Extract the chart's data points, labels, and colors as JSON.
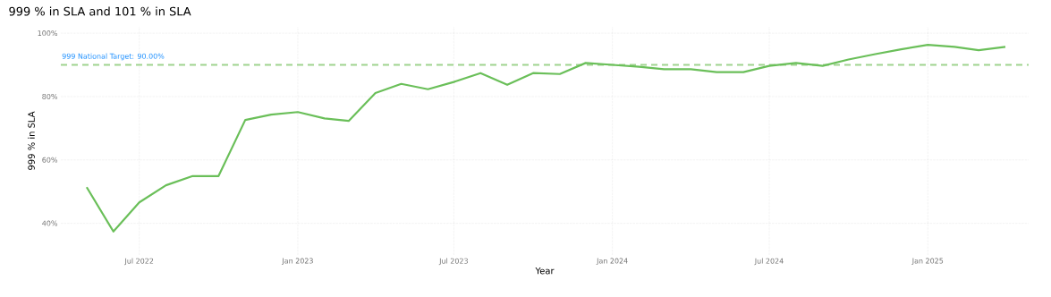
{
  "chart_data": {
    "type": "line",
    "title": "999 % in SLA and 101 % in SLA",
    "xlabel": "Year",
    "ylabel": "999 % in SLA",
    "x": [
      "2022-05",
      "2022-06",
      "2022-07",
      "2022-08",
      "2022-09",
      "2022-10",
      "2022-11",
      "2022-12",
      "2023-01",
      "2023-02",
      "2023-03",
      "2023-04",
      "2023-05",
      "2023-06",
      "2023-07",
      "2023-08",
      "2023-09",
      "2023-10",
      "2023-11",
      "2023-12",
      "2024-01",
      "2024-02",
      "2024-03",
      "2024-04",
      "2024-05",
      "2024-06",
      "2024-07",
      "2024-08",
      "2024-09",
      "2024-10",
      "2024-11",
      "2024-12",
      "2025-01",
      "2025-02",
      "2025-03",
      "2025-04"
    ],
    "series": [
      {
        "color": "#6abf59",
        "values": [
          51.4,
          37.4,
          46.6,
          52,
          54.9,
          54.9,
          72.6,
          74.3,
          75.1,
          73.1,
          72.3,
          81.1,
          84,
          82.3,
          84.6,
          87.4,
          83.7,
          87.4,
          87.1,
          90.6,
          90,
          89.4,
          88.6,
          88.6,
          87.7,
          87.7,
          89.7,
          90.6,
          89.7,
          91.7,
          93.4,
          94.9,
          96.3,
          95.7,
          94.6,
          95.7
        ]
      }
    ],
    "xlim": [
      "2022-04-01",
      "2025-04-28"
    ],
    "ylim": [
      30,
      102
    ],
    "xticks": [
      {
        "value": "2022-07",
        "label": "Jul 2022"
      },
      {
        "value": "2023-01",
        "label": "Jan 2023"
      },
      {
        "value": "2023-07",
        "label": "Jul 2023"
      },
      {
        "value": "2024-01",
        "label": "Jan 2024"
      },
      {
        "value": "2024-07",
        "label": "Jul 2024"
      },
      {
        "value": "2025-01",
        "label": "Jan 2025"
      }
    ],
    "yticks": [
      {
        "value": 40,
        "label": "40%"
      },
      {
        "value": 60,
        "label": "60%"
      },
      {
        "value": 80,
        "label": "80%"
      },
      {
        "value": 100,
        "label": "100%"
      }
    ],
    "ref_lines": [
      {
        "axis": "y",
        "value": 90,
        "label": "999 National Target: 90.00%",
        "color": "#9fd48f",
        "line_style": "dashed"
      }
    ],
    "grid": true,
    "line_style": "solid",
    "marker": "none"
  }
}
